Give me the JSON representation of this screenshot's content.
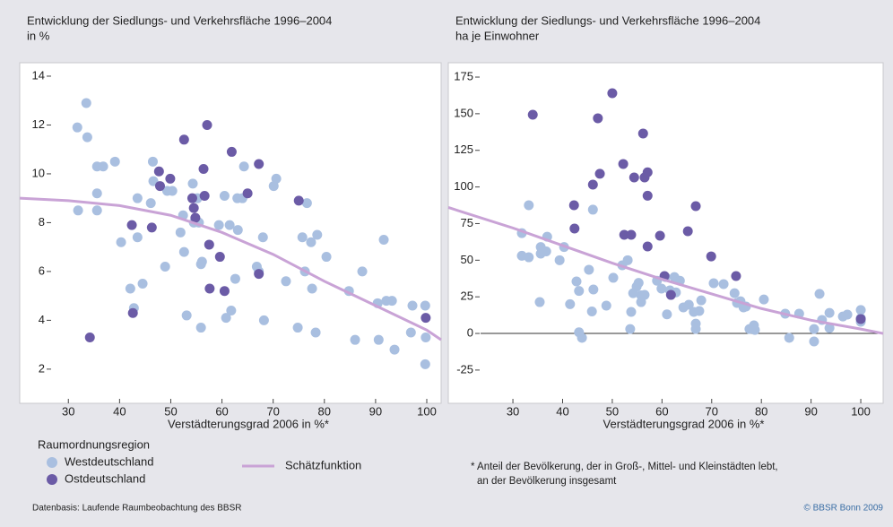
{
  "chart_data": [
    {
      "type": "scatter",
      "title": "Entwicklung der Siedlungs- und Verkehrsfläche 1996–2004",
      "subtitle": "in %",
      "xlabel": "Verstädterungsgrad 2006 in %*",
      "legend_title": "Raumordnungsregion",
      "xlim": [
        20.5,
        102.8
      ],
      "ylim": [
        0.6,
        14.55
      ],
      "xticks": [
        30,
        40,
        50,
        60,
        70,
        80,
        90,
        100
      ],
      "yticks": [
        2,
        4,
        6,
        8,
        10,
        12,
        14
      ],
      "zero_line": false,
      "series": [
        {
          "name": "Westdeutschland",
          "color": "#a9bfe0",
          "x": [
            31.75,
            33.5,
            33.7,
            31.9,
            35.6,
            36.8,
            35.6,
            35.6,
            39.1,
            40.3,
            43.5,
            43.5,
            42.1,
            42.8,
            44.5,
            46.1,
            46.5,
            46.6,
            49.3,
            48.9,
            50.3,
            52.4,
            51.9,
            54.3,
            55.2,
            54.5,
            55.5,
            52.6,
            53.1,
            55.9,
            56.1,
            55.9,
            59.4,
            60.5,
            61.5,
            60.8,
            61.8,
            62.6,
            63.1,
            63.0,
            64.0,
            64.3,
            66.8,
            67.2,
            68.0,
            68.2,
            70.1,
            70.6,
            72.5,
            74.8,
            75.7,
            76.2,
            76.6,
            77.4,
            77.6,
            78.6,
            78.3,
            80.4,
            84.8,
            86.0,
            87.4,
            90.4,
            90.6,
            91.6,
            92.1,
            93.2,
            93.7,
            96.9,
            97.2,
            99.7,
            99.8,
            99.7
          ],
          "y": [
            11.9,
            12.9,
            11.5,
            8.5,
            10.3,
            10.3,
            9.2,
            8.5,
            10.5,
            7.2,
            9.0,
            7.4,
            5.3,
            4.5,
            5.5,
            8.8,
            10.5,
            9.7,
            9.3,
            6.2,
            9.3,
            8.3,
            7.6,
            9.6,
            9.0,
            8.0,
            8.0,
            6.8,
            4.2,
            6.3,
            6.4,
            3.7,
            7.9,
            9.1,
            7.9,
            4.1,
            4.4,
            5.7,
            7.7,
            9.0,
            9.0,
            10.3,
            6.2,
            6.0,
            7.4,
            4.0,
            9.5,
            9.8,
            5.6,
            3.7,
            7.4,
            6.0,
            8.8,
            7.2,
            5.3,
            7.5,
            3.5,
            6.6,
            5.2,
            3.2,
            6.0,
            4.7,
            3.2,
            7.3,
            4.8,
            4.8,
            2.8,
            3.5,
            4.6,
            4.6,
            3.3,
            2.2
          ]
        },
        {
          "name": "Ostdeutschland",
          "color": "#6b5ba6",
          "x": [
            34.2,
            42.4,
            42.6,
            46.3,
            47.7,
            47.9,
            49.9,
            52.6,
            54.2,
            54.5,
            54.8,
            56.4,
            56.6,
            57.1,
            57.5,
            57.6,
            59.6,
            60.5,
            61.9,
            65.0,
            67.2,
            67.2,
            75.0,
            99.8
          ],
          "y": [
            3.3,
            7.9,
            4.3,
            7.8,
            10.1,
            9.5,
            9.8,
            11.4,
            9.0,
            8.6,
            8.2,
            10.2,
            9.1,
            12.0,
            7.1,
            5.3,
            6.6,
            5.2,
            10.9,
            9.2,
            10.4,
            5.9,
            8.9,
            4.1
          ]
        },
        {
          "name": "Schätzfunktion",
          "type": "line",
          "color": "#c9a3d6",
          "x": [
            20.5,
            30,
            40,
            50,
            60,
            70,
            80,
            90,
            100,
            102.8
          ],
          "y": [
            9.0,
            8.9,
            8.7,
            8.3,
            7.6,
            6.7,
            5.6,
            4.6,
            3.6,
            3.2
          ]
        }
      ]
    },
    {
      "type": "scatter",
      "title": "Entwicklung der Siedlungs- und Verkehrsfläche 1996–2004",
      "subtitle": "ha je Einwohner",
      "xlabel": "Verstädterungsgrad 2006 in %*",
      "xlim": [
        17,
        104.5
      ],
      "ylim": [
        -47.7,
        184.8
      ],
      "xticks": [
        30,
        40,
        50,
        60,
        70,
        80,
        90,
        100
      ],
      "yticks": [
        -25,
        0,
        25,
        50,
        75,
        100,
        125,
        150,
        175
      ],
      "zero_line": true,
      "series": [
        {
          "name": "Westdeutschland",
          "color": "#a9bfe0",
          "x": [
            31.8,
            31.8,
            33.2,
            33.2,
            35.6,
            35.6,
            36.7,
            36.9,
            35.4,
            39.4,
            40.3,
            41.5,
            42.8,
            43.3,
            43.3,
            43.9,
            45.3,
            45.9,
            46.1,
            46.2,
            48.8,
            50.2,
            52,
            53.1,
            53.6,
            53.8,
            54.2,
            54.9,
            55.3,
            55.8,
            55.8,
            56.5,
            59,
            59.9,
            60.7,
            61,
            61.6,
            62.5,
            62.8,
            63.6,
            64.3,
            65.4,
            66.4,
            66.8,
            66.8,
            67.5,
            67.9,
            70.4,
            72.4,
            74.6,
            75.1,
            75.8,
            76.4,
            76.9,
            77.6,
            78.5,
            78.7,
            80.5,
            84.8,
            85.6,
            87.6,
            90.6,
            90.6,
            91.7,
            92.2,
            93.7,
            93.7,
            96.4,
            97.3,
            100,
            100,
            100
          ],
          "y": [
            68.5,
            53,
            52,
            87.5,
            59,
            54.5,
            56,
            66,
            21.4,
            50,
            59,
            20,
            35.5,
            29,
            0.8,
            -3,
            43.5,
            15,
            84.5,
            30,
            19,
            38,
            46.5,
            50,
            3,
            14.7,
            27.5,
            32,
            34.5,
            26,
            21.4,
            26.3,
            36,
            30.6,
            38.5,
            13,
            29.4,
            38.5,
            28,
            36,
            17.8,
            19.6,
            14.7,
            6.7,
            3,
            15.3,
            22.6,
            34.3,
            33.7,
            27.5,
            20.8,
            22,
            17.8,
            18.4,
            3,
            5.5,
            2.4,
            23.2,
            13.5,
            -3,
            13.5,
            3,
            -5.5,
            27,
            9.2,
            14,
            3.7,
            11.6,
            12.9,
            16,
            8,
            10.4
          ]
        },
        {
          "name": "Ostdeutschland",
          "color": "#6b5ba6",
          "x": [
            34,
            42.3,
            42.4,
            46.1,
            47.1,
            47.5,
            50,
            52.2,
            52.4,
            53.8,
            54.4,
            56.2,
            56.5,
            57.1,
            57.1,
            57.1,
            59.6,
            60.5,
            61.8,
            65.2,
            66.8,
            69.9,
            74.9,
            100
          ],
          "y": [
            149.3,
            87.5,
            71.6,
            101.6,
            146.9,
            109,
            164,
            115.7,
            67.3,
            67.3,
            106.5,
            136.5,
            106.5,
            110,
            94,
            59.4,
            66.7,
            39.2,
            26.3,
            69.8,
            86.9,
            52.6,
            39.2,
            9.8
          ]
        },
        {
          "name": "Schätzfunktion",
          "type": "line",
          "color": "#c9a3d6",
          "x": [
            17,
            30,
            40,
            50,
            60,
            70,
            80,
            90,
            100,
            104.5
          ],
          "y": [
            86,
            72,
            60,
            48,
            37,
            27,
            17,
            9,
            3,
            0
          ]
        }
      ]
    }
  ],
  "footnote": [
    "* Anteil der Bevölkerung, der in Groß-, Mittel- und Kleinstädten lebt,",
    "an der Bevölkerung insgesamt"
  ],
  "source": "Datenbasis: Laufende Raumbeobachtung des BBSR",
  "copyright": "© BBSR Bonn 2009"
}
